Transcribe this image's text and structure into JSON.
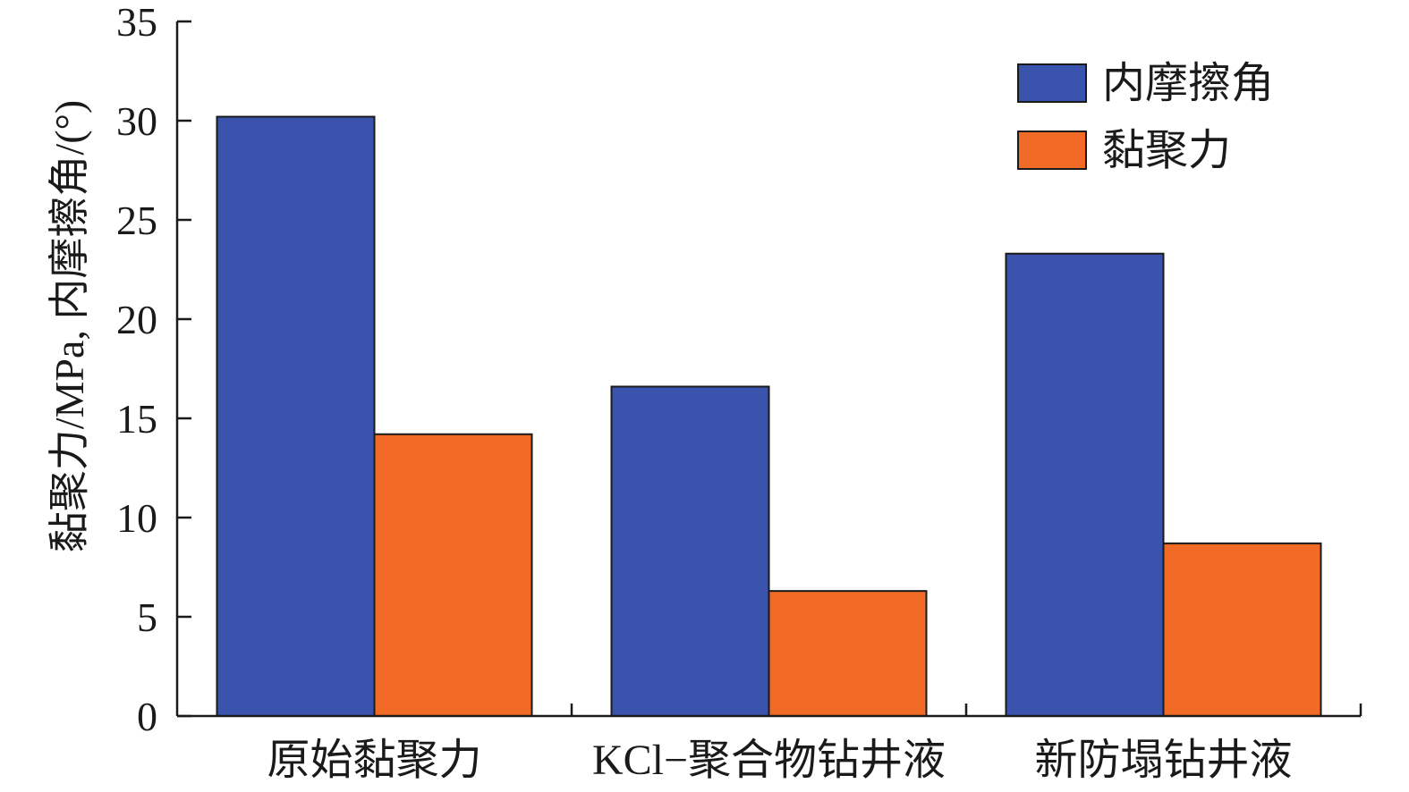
{
  "chart_data": {
    "type": "bar",
    "categories": [
      "原始黏聚力",
      "KCl−聚合物钻井液",
      "新防塌钻井液"
    ],
    "series": [
      {
        "name": "内摩擦角",
        "values": [
          30.2,
          16.6,
          23.3
        ],
        "color": "#3a53ad"
      },
      {
        "name": "黏聚力",
        "values": [
          14.2,
          6.3,
          8.7
        ],
        "color": "#f26b26"
      }
    ],
    "xlabel": "",
    "ylabel": "黏聚力/MPa, 内摩擦角/(°)",
    "ylim": [
      0,
      35
    ],
    "yticks": [
      0,
      5,
      10,
      15,
      20,
      25,
      30,
      35
    ],
    "grid": false,
    "legend_position": "top-right"
  }
}
